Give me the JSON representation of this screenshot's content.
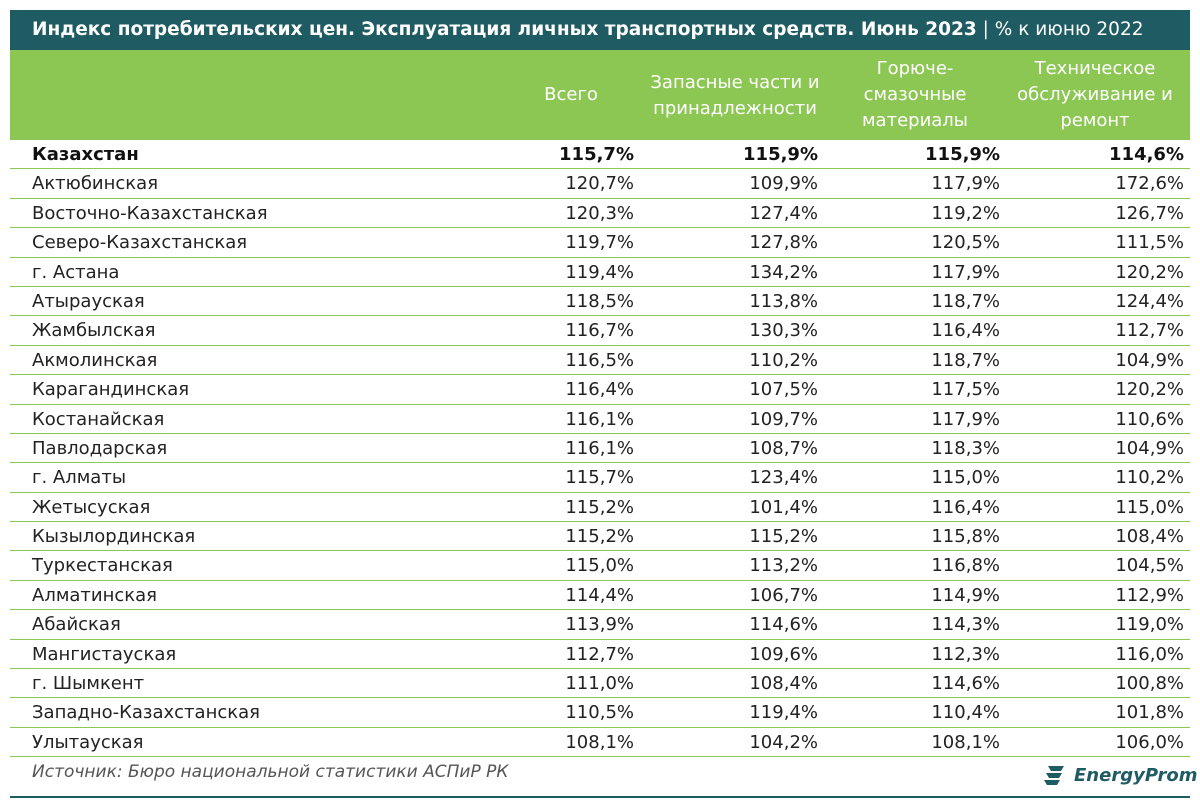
{
  "title": "Индекс потребительских цен. Эксплуатация личных транспортных средств. Июнь 2023",
  "subtitle": " | % к июню 2022",
  "headers": [
    "Всего",
    "Запасные части и\nпринадлежности",
    "Горюче-\nсмазочные\nматериалы",
    "Техническое\nобслуживание и\nремонт"
  ],
  "rows": [
    {
      "region": "Казахстан",
      "v": [
        "115,7%",
        "115,9%",
        "115,9%",
        "114,6%"
      ]
    },
    {
      "region": "Актюбинская",
      "v": [
        "120,7%",
        "109,9%",
        "117,9%",
        "172,6%"
      ]
    },
    {
      "region": "Восточно-Казахстанская",
      "v": [
        "120,3%",
        "127,4%",
        "119,2%",
        "126,7%"
      ]
    },
    {
      "region": "Северо-Казахстанская",
      "v": [
        "119,7%",
        "127,8%",
        "120,5%",
        "111,5%"
      ]
    },
    {
      "region": "г. Астана",
      "v": [
        "119,4%",
        "134,2%",
        "117,9%",
        "120,2%"
      ]
    },
    {
      "region": "Атырауская",
      "v": [
        "118,5%",
        "113,8%",
        "118,7%",
        "124,4%"
      ]
    },
    {
      "region": "Жамбылская",
      "v": [
        "116,7%",
        "130,3%",
        "116,4%",
        "112,7%"
      ]
    },
    {
      "region": "Акмолинская",
      "v": [
        "116,5%",
        "110,2%",
        "118,7%",
        "104,9%"
      ]
    },
    {
      "region": "Карагандинская",
      "v": [
        "116,4%",
        "107,5%",
        "117,5%",
        "120,2%"
      ]
    },
    {
      "region": "Костанайская",
      "v": [
        "116,1%",
        "109,7%",
        "117,9%",
        "110,6%"
      ]
    },
    {
      "region": "Павлодарская",
      "v": [
        "116,1%",
        "108,7%",
        "118,3%",
        "104,9%"
      ]
    },
    {
      "region": "г. Алматы",
      "v": [
        "115,7%",
        "123,4%",
        "115,0%",
        "110,2%"
      ]
    },
    {
      "region": "Жетысуская",
      "v": [
        "115,2%",
        "101,4%",
        "116,4%",
        "115,0%"
      ]
    },
    {
      "region": "Кызылординская",
      "v": [
        "115,2%",
        "115,2%",
        "115,8%",
        "108,4%"
      ]
    },
    {
      "region": "Туркестанская",
      "v": [
        "115,0%",
        "113,2%",
        "116,8%",
        "104,5%"
      ]
    },
    {
      "region": "Алматинская",
      "v": [
        "114,4%",
        "106,7%",
        "114,9%",
        "112,9%"
      ]
    },
    {
      "region": "Абайская",
      "v": [
        "113,9%",
        "114,6%",
        "114,3%",
        "119,0%"
      ]
    },
    {
      "region": "Мангистауская",
      "v": [
        "112,7%",
        "109,6%",
        "112,3%",
        "116,0%"
      ]
    },
    {
      "region": "г. Шымкент",
      "v": [
        "111,0%",
        "108,4%",
        "114,6%",
        "100,8%"
      ]
    },
    {
      "region": "Западно-Казахстанская",
      "v": [
        "110,5%",
        "119,4%",
        "110,4%",
        "101,8%"
      ]
    },
    {
      "region": "Улытауская",
      "v": [
        "108,1%",
        "104,2%",
        "108,1%",
        "106,0%"
      ]
    }
  ],
  "source": "Источник: Бюро национальной статистики АСПиР РК",
  "logo_text": "EnergyProm",
  "colors": {
    "title_bg": "#1f5b63",
    "header_bg": "#8cc653",
    "row_border": "#8cc653",
    "logo": "#1f5b63"
  },
  "chart_data": {
    "type": "table",
    "title": "Индекс потребительских цен. Эксплуатация личных транспортных средств. Июнь 2023",
    "subtitle": "% к июню 2022",
    "columns": [
      "Всего",
      "Запасные части и принадлежности",
      "Горюче-смазочные материалы",
      "Техническое обслуживание и ремонт"
    ],
    "unit": "%",
    "categories": [
      "Казахстан",
      "Актюбинская",
      "Восточно-Казахстанская",
      "Северо-Казахстанская",
      "г. Астана",
      "Атырауская",
      "Жамбылская",
      "Акмолинская",
      "Карагандинская",
      "Костанайская",
      "Павлодарская",
      "г. Алматы",
      "Жетысуская",
      "Кызылординская",
      "Туркестанская",
      "Алматинская",
      "Абайская",
      "Мангистауская",
      "г. Шымкент",
      "Западно-Казахстанская",
      "Улытауская"
    ],
    "series": [
      {
        "name": "Всего",
        "values": [
          115.7,
          120.7,
          120.3,
          119.7,
          119.4,
          118.5,
          116.7,
          116.5,
          116.4,
          116.1,
          116.1,
          115.7,
          115.2,
          115.2,
          115.0,
          114.4,
          113.9,
          112.7,
          111.0,
          110.5,
          108.1
        ]
      },
      {
        "name": "Запасные части и принадлежности",
        "values": [
          115.9,
          109.9,
          127.4,
          127.8,
          134.2,
          113.8,
          130.3,
          110.2,
          107.5,
          109.7,
          108.7,
          123.4,
          101.4,
          115.2,
          113.2,
          106.7,
          114.6,
          109.6,
          108.4,
          119.4,
          104.2
        ]
      },
      {
        "name": "Горюче-смазочные материалы",
        "values": [
          115.9,
          117.9,
          119.2,
          120.5,
          117.9,
          118.7,
          116.4,
          118.7,
          117.5,
          117.9,
          118.3,
          115.0,
          116.4,
          115.8,
          116.8,
          114.9,
          114.3,
          112.3,
          114.6,
          110.4,
          108.1
        ]
      },
      {
        "name": "Техническое обслуживание и ремонт",
        "values": [
          114.6,
          172.6,
          126.7,
          111.5,
          120.2,
          124.4,
          112.7,
          104.9,
          120.2,
          110.6,
          104.9,
          110.2,
          115.0,
          108.4,
          104.5,
          112.9,
          119.0,
          116.0,
          100.8,
          101.8,
          106.0
        ]
      }
    ]
  }
}
